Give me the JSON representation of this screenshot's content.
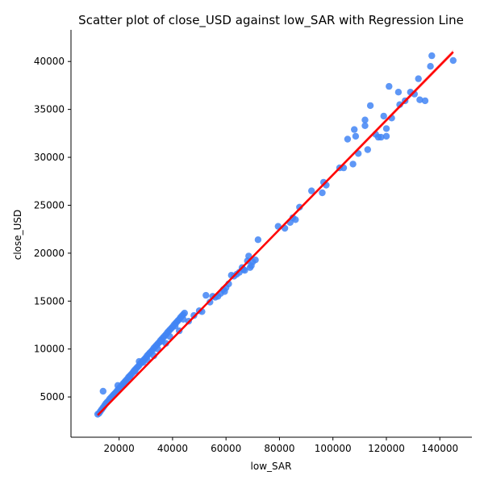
{
  "chart_data": {
    "type": "scatter",
    "title": "Scatter plot of close_USD against low_SAR with Regression Line",
    "xlabel": "low_SAR",
    "ylabel": "close_USD",
    "xlim": [
      2000,
      152000
    ],
    "ylim": [
      800,
      43300
    ],
    "x_ticks": [
      20000,
      40000,
      60000,
      80000,
      100000,
      120000,
      140000
    ],
    "x_tick_labels": [
      "20000",
      "40000",
      "60000",
      "80000",
      "100000",
      "120000",
      "140000"
    ],
    "y_ticks": [
      5000,
      10000,
      15000,
      20000,
      25000,
      30000,
      35000,
      40000
    ],
    "y_tick_labels": [
      "5000",
      "10000",
      "15000",
      "20000",
      "25000",
      "30000",
      "35000",
      "40000"
    ],
    "grid": false,
    "legend": "none",
    "colors": {
      "points": "#4285f4",
      "regression": "#ff0000"
    },
    "regression_line": {
      "x": [
        12000,
        145000
      ],
      "y": [
        3100,
        41000
      ]
    },
    "points": {
      "x": [
        12000,
        12500,
        13000,
        13500,
        14000,
        14500,
        15000,
        15500,
        16000,
        16500,
        17000,
        17500,
        18000,
        18500,
        19000,
        19500,
        20000,
        20500,
        21000,
        21500,
        22000,
        22500,
        23000,
        23500,
        24000,
        24500,
        25000,
        25500,
        26000,
        26500,
        27000,
        27500,
        28000,
        28500,
        29000,
        29500,
        30000,
        30500,
        31000,
        31500,
        32000,
        32500,
        33000,
        33500,
        34000,
        34500,
        35000,
        35500,
        36000,
        36500,
        37000,
        37500,
        38000,
        38500,
        39000,
        39500,
        40000,
        40500,
        41000,
        41500,
        42000,
        42500,
        43000,
        43500,
        44000,
        44500,
        14000,
        18000,
        19500,
        22000,
        24000,
        26000,
        27500,
        29000,
        30500,
        33000,
        34500,
        36000,
        37500,
        39000,
        41000,
        42500,
        44000,
        46000,
        48000,
        50000,
        51000,
        52500,
        54000,
        55000,
        56000,
        57000,
        58000,
        59000,
        59500,
        60000,
        61000,
        62000,
        63000,
        64000,
        65000,
        66000,
        66500,
        67000,
        68000,
        68500,
        69000,
        69500,
        70000,
        71000,
        72000,
        79500,
        82000,
        84000,
        85000,
        86000,
        87500,
        92000,
        96000,
        96500,
        97500,
        102500,
        104000,
        105500,
        107500,
        108000,
        108500,
        109500,
        112000,
        112000,
        113000,
        114000,
        116000,
        117000,
        118000,
        119000,
        120000,
        120000,
        121000,
        122000,
        124500,
        125000,
        127000,
        129000,
        130500,
        132000,
        132500,
        134500,
        136500,
        137000,
        145000
      ],
      "y": [
        3200,
        3300,
        3500,
        3700,
        3900,
        4100,
        4300,
        4450,
        4600,
        4800,
        4950,
        5100,
        5250,
        5400,
        5550,
        5750,
        5900,
        6050,
        6200,
        6400,
        6550,
        6700,
        6850,
        7050,
        7200,
        7350,
        7500,
        7700,
        7850,
        8000,
        8150,
        8300,
        8500,
        8650,
        8800,
        8950,
        9100,
        9300,
        9450,
        9600,
        9750,
        9900,
        10100,
        10250,
        10400,
        10550,
        10700,
        10900,
        11050,
        11200,
        11350,
        11500,
        11700,
        11850,
        12000,
        12150,
        12300,
        12500,
        12650,
        12800,
        12950,
        13100,
        13300,
        13450,
        13600,
        13750,
        5600,
        5200,
        6200,
        6300,
        7100,
        7700,
        8700,
        8600,
        8900,
        9300,
        10000,
        10800,
        10600,
        11300,
        12400,
        11900,
        13100,
        12900,
        13500,
        14000,
        13900,
        15600,
        14900,
        15500,
        15400,
        15500,
        15800,
        16200,
        16000,
        16400,
        16800,
        17700,
        17600,
        17800,
        18000,
        18500,
        18300,
        18200,
        19200,
        19700,
        18500,
        18700,
        19100,
        19300,
        21400,
        22800,
        22600,
        23200,
        23700,
        23500,
        24800,
        26500,
        26300,
        27400,
        27100,
        28900,
        28900,
        31900,
        29300,
        32900,
        32200,
        30400,
        33300,
        33900,
        30800,
        35400,
        32400,
        32100,
        32100,
        34300,
        33000,
        32200,
        37400,
        34100,
        36800,
        35500,
        35900,
        36800,
        36600,
        38200,
        36000,
        35900,
        39500,
        40600,
        40100
      ]
    }
  }
}
